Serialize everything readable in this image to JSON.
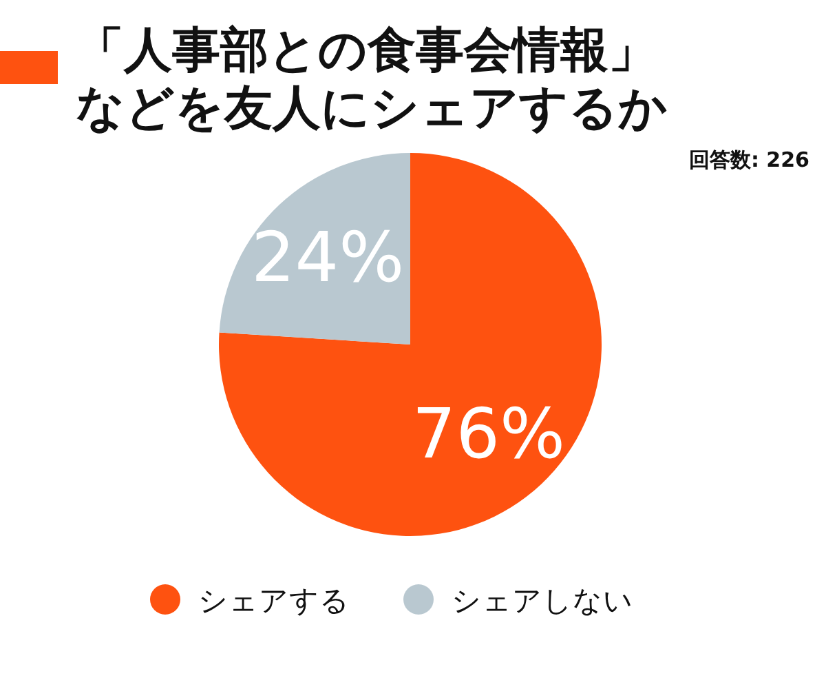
{
  "chart_data": {
    "type": "pie",
    "title": "「人事部との食事会情報」などを友人にシェアするか",
    "annotations": [
      "回答数: 226"
    ],
    "categories": [
      "シェアする",
      "シェアしない"
    ],
    "values": [
      76,
      24
    ],
    "colors": [
      "#fe5210",
      "#b9c8d0"
    ],
    "value_labels": [
      "76%",
      "24%"
    ],
    "legend": "bottom"
  }
}
